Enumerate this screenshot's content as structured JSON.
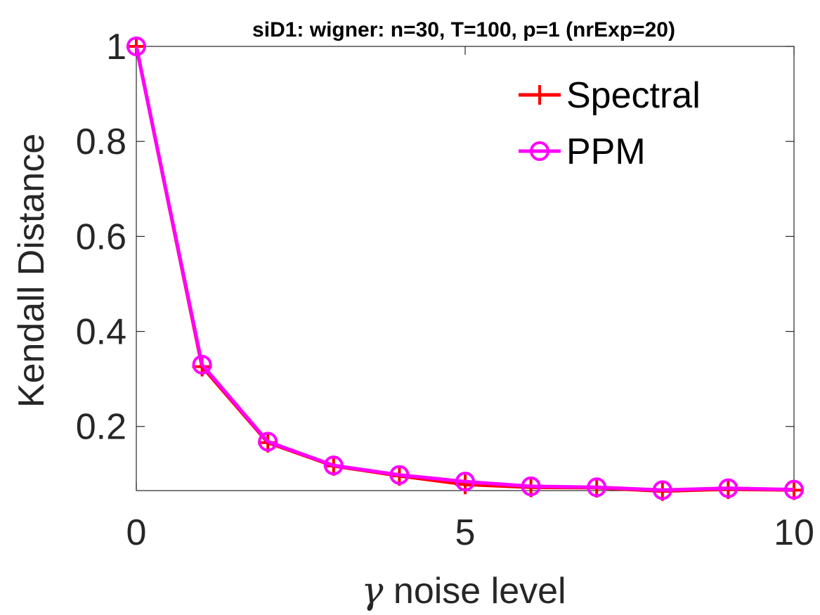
{
  "chart_data": {
    "type": "line",
    "title": "siD1: wigner: n=30, T=100, p=1 (nrExp=20)",
    "xlabel_symbol": "γ",
    "xlabel": " noise level",
    "ylabel": "Kendall Distance",
    "xlim": [
      0,
      10
    ],
    "ylim": [
      0.065,
      1.0
    ],
    "xticks": [
      0,
      5,
      10
    ],
    "yticks": [
      0.2,
      0.4,
      0.6,
      0.8,
      1
    ],
    "grid": false,
    "legend_position": "top-right",
    "x": [
      0,
      1,
      2,
      3,
      4,
      5,
      6,
      7,
      8,
      9,
      10
    ],
    "series": [
      {
        "name": "Spectral",
        "color": "#ff0000",
        "marker": "plus",
        "values": [
          1.0,
          0.326,
          0.166,
          0.117,
          0.096,
          0.078,
          0.072,
          0.071,
          0.064,
          0.068,
          0.066
        ]
      },
      {
        "name": "PPM",
        "color": "#ff00ff",
        "marker": "circle",
        "values": [
          1.0,
          0.33,
          0.168,
          0.118,
          0.098,
          0.084,
          0.074,
          0.072,
          0.066,
          0.07,
          0.067
        ]
      }
    ]
  }
}
